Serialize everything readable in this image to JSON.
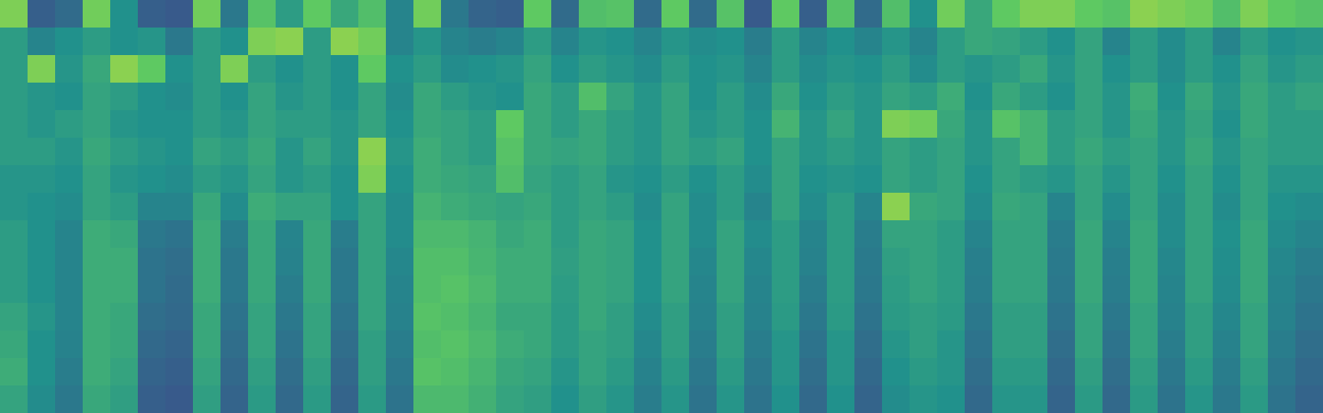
{
  "chart_data": {
    "type": "heatmap",
    "tick_labels": false,
    "color_range": [
      0,
      100
    ],
    "cells": [
      [
        80,
        30,
        35,
        78,
        50,
        30,
        28,
        78,
        40,
        72,
        55,
        75,
        60,
        70,
        45,
        78,
        40,
        32,
        30,
        75,
        35,
        70,
        72,
        35,
        75,
        35,
        72,
        28,
        75,
        30,
        72,
        35,
        70,
        50,
        78,
        60,
        75,
        80,
        80,
        75,
        72,
        82,
        80,
        78,
        70,
        80,
        75,
        72
      ],
      [
        55,
        45,
        50,
        55,
        50,
        52,
        40,
        55,
        50,
        80,
        82,
        55,
        82,
        78,
        45,
        52,
        45,
        42,
        45,
        55,
        45,
        52,
        50,
        45,
        52,
        48,
        50,
        42,
        55,
        45,
        50,
        45,
        52,
        45,
        55,
        60,
        58,
        55,
        50,
        58,
        45,
        55,
        48,
        55,
        45,
        55,
        50,
        52
      ],
      [
        55,
        80,
        52,
        60,
        82,
        75,
        50,
        55,
        80,
        55,
        50,
        55,
        50,
        75,
        50,
        55,
        48,
        50,
        52,
        58,
        50,
        55,
        52,
        48,
        55,
        50,
        52,
        45,
        55,
        48,
        52,
        50,
        55,
        48,
        55,
        52,
        55,
        60,
        52,
        58,
        50,
        55,
        48,
        55,
        50,
        58,
        52,
        55
      ],
      [
        55,
        52,
        50,
        58,
        55,
        50,
        48,
        55,
        50,
        58,
        52,
        55,
        50,
        58,
        48,
        60,
        55,
        52,
        50,
        60,
        55,
        70,
        58,
        52,
        58,
        50,
        55,
        48,
        60,
        50,
        55,
        52,
        58,
        55,
        62,
        50,
        60,
        55,
        50,
        58,
        52,
        62,
        50,
        60,
        52,
        60,
        55,
        58
      ],
      [
        55,
        52,
        55,
        58,
        52,
        50,
        50,
        55,
        52,
        58,
        55,
        55,
        52,
        58,
        50,
        60,
        58,
        55,
        75,
        60,
        55,
        60,
        55,
        52,
        58,
        52,
        55,
        50,
        65,
        52,
        58,
        52,
        80,
        78,
        60,
        52,
        72,
        65,
        55,
        58,
        52,
        60,
        52,
        58,
        50,
        60,
        55,
        55
      ],
      [
        55,
        55,
        52,
        60,
        55,
        52,
        50,
        58,
        55,
        60,
        52,
        58,
        52,
        82,
        52,
        62,
        58,
        55,
        72,
        60,
        58,
        60,
        55,
        52,
        58,
        55,
        58,
        50,
        58,
        52,
        55,
        52,
        58,
        55,
        58,
        52,
        58,
        65,
        55,
        60,
        55,
        58,
        52,
        60,
        52,
        58,
        55,
        55
      ],
      [
        52,
        52,
        50,
        58,
        52,
        50,
        48,
        55,
        52,
        58,
        52,
        55,
        50,
        80,
        50,
        62,
        60,
        58,
        70,
        58,
        55,
        58,
        52,
        50,
        55,
        50,
        55,
        48,
        58,
        50,
        52,
        50,
        58,
        55,
        58,
        50,
        58,
        55,
        52,
        58,
        52,
        58,
        50,
        58,
        50,
        58,
        52,
        52
      ],
      [
        52,
        50,
        48,
        58,
        55,
        45,
        45,
        60,
        48,
        62,
        58,
        58,
        50,
        58,
        48,
        65,
        62,
        60,
        58,
        60,
        55,
        58,
        55,
        48,
        58,
        48,
        55,
        45,
        58,
        48,
        55,
        45,
        82,
        60,
        58,
        48,
        60,
        58,
        45,
        58,
        48,
        58,
        48,
        58,
        48,
        58,
        50,
        48
      ],
      [
        55,
        50,
        45,
        62,
        60,
        40,
        38,
        62,
        42,
        60,
        45,
        60,
        42,
        58,
        48,
        68,
        68,
        65,
        60,
        62,
        55,
        60,
        58,
        50,
        58,
        48,
        58,
        48,
        55,
        45,
        55,
        42,
        58,
        58,
        55,
        45,
        58,
        58,
        42,
        60,
        45,
        60,
        48,
        58,
        50,
        60,
        48,
        45
      ],
      [
        55,
        50,
        45,
        62,
        62,
        38,
        36,
        62,
        40,
        60,
        44,
        60,
        40,
        58,
        46,
        70,
        70,
        66,
        62,
        62,
        56,
        60,
        58,
        50,
        58,
        46,
        58,
        46,
        55,
        44,
        55,
        41,
        56,
        58,
        55,
        43,
        58,
        58,
        41,
        60,
        43,
        60,
        46,
        58,
        49,
        60,
        46,
        42
      ],
      [
        55,
        50,
        45,
        62,
        62,
        38,
        35,
        62,
        40,
        60,
        42,
        60,
        40,
        58,
        45,
        70,
        72,
        68,
        62,
        62,
        55,
        60,
        58,
        50,
        58,
        45,
        58,
        45,
        55,
        42,
        55,
        40,
        55,
        58,
        55,
        42,
        58,
        58,
        40,
        60,
        42,
        60,
        45,
        58,
        48,
        60,
        45,
        40
      ],
      [
        58,
        52,
        45,
        62,
        60,
        36,
        34,
        60,
        38,
        58,
        40,
        58,
        38,
        58,
        44,
        72,
        70,
        66,
        60,
        60,
        54,
        60,
        56,
        48,
        56,
        44,
        56,
        44,
        54,
        40,
        54,
        38,
        54,
        56,
        54,
        40,
        56,
        56,
        38,
        58,
        40,
        58,
        44,
        56,
        46,
        58,
        44,
        38
      ],
      [
        60,
        50,
        44,
        62,
        60,
        34,
        32,
        60,
        36,
        58,
        38,
        58,
        36,
        56,
        42,
        70,
        72,
        68,
        62,
        60,
        54,
        58,
        56,
        46,
        56,
        42,
        56,
        42,
        52,
        38,
        52,
        36,
        52,
        56,
        52,
        38,
        56,
        56,
        36,
        58,
        38,
        58,
        42,
        56,
        44,
        58,
        42,
        36
      ],
      [
        62,
        50,
        42,
        62,
        58,
        32,
        30,
        58,
        34,
        56,
        36,
        56,
        34,
        56,
        40,
        72,
        70,
        66,
        60,
        58,
        52,
        58,
        54,
        44,
        54,
        40,
        54,
        40,
        52,
        36,
        52,
        34,
        50,
        54,
        52,
        36,
        54,
        54,
        34,
        56,
        36,
        56,
        40,
        54,
        42,
        56,
        40,
        34
      ],
      [
        58,
        48,
        40,
        60,
        56,
        30,
        28,
        56,
        32,
        54,
        34,
        54,
        32,
        54,
        38,
        68,
        68,
        64,
        58,
        56,
        50,
        56,
        52,
        42,
        52,
        38,
        52,
        38,
        50,
        34,
        50,
        32,
        48,
        52,
        50,
        34,
        52,
        52,
        32,
        54,
        34,
        54,
        38,
        52,
        40,
        54,
        38,
        32
      ]
    ]
  }
}
